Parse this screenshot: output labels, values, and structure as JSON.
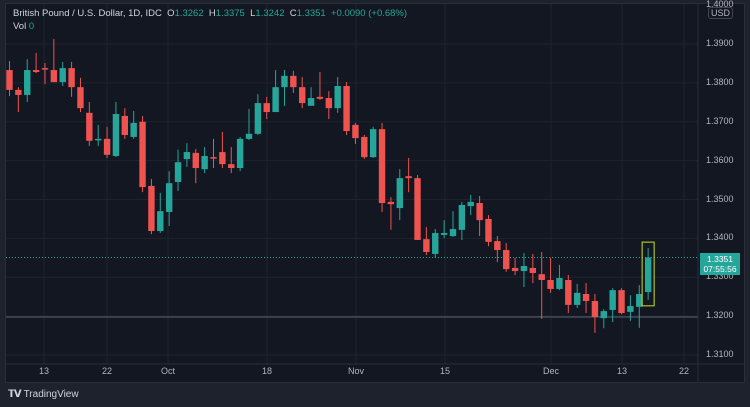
{
  "header": {
    "symbol": "British Pound / U.S. Dollar, 1D, IDC",
    "o_label": "O",
    "o": "1.3262",
    "h_label": "H",
    "h": "1.3375",
    "l_label": "L",
    "l": "1.3242",
    "c_label": "C",
    "c": "1.3351",
    "change": "+0.0090 (+0.68%)",
    "vol_label": "Vol",
    "vol": "0"
  },
  "price_axis": {
    "currency": "USD",
    "last_price": "1.3351",
    "countdown": "07:55:56"
  },
  "footer": {
    "brand": "TradingView",
    "logo": "TV"
  },
  "colors": {
    "up": "#26a69a",
    "down": "#ef5350",
    "background": "#131722",
    "highlight": "#c6e027"
  },
  "chart_data": {
    "type": "candlestick",
    "title": "British Pound / U.S. Dollar, 1D, IDC",
    "ylim": [
      1.31,
      1.4
    ],
    "yticks": [
      "1.4000",
      "1.3900",
      "1.3800",
      "1.3700",
      "1.3600",
      "1.3500",
      "1.3400",
      "1.3300",
      "1.3200",
      "1.3100"
    ],
    "xticks": [
      "13",
      "22",
      "Oct",
      "18",
      "Nov",
      "15",
      "Dec",
      "13",
      "22"
    ],
    "grid": true,
    "horizontal_lines": [
      1.3351,
      1.3198
    ],
    "highlighted_candle": "last",
    "ohlc": [
      [
        1.3833,
        1.3856,
        1.3766,
        1.3782
      ],
      [
        1.3782,
        1.3789,
        1.3725,
        1.3769
      ],
      [
        1.3769,
        1.3861,
        1.3751,
        1.3833
      ],
      [
        1.3833,
        1.3877,
        1.3825,
        1.3828
      ],
      [
        1.3838,
        1.3851,
        1.3797,
        1.3836
      ],
      [
        1.3833,
        1.3913,
        1.3802,
        1.3802
      ],
      [
        1.3802,
        1.3854,
        1.3792,
        1.3838
      ],
      [
        1.3838,
        1.3854,
        1.3764,
        1.3789
      ],
      [
        1.3789,
        1.3813,
        1.3725,
        1.3735
      ],
      [
        1.3723,
        1.3751,
        1.3638,
        1.3651
      ],
      [
        1.3654,
        1.3692,
        1.3638,
        1.3656
      ],
      [
        1.3656,
        1.3687,
        1.3607,
        1.3615
      ],
      [
        1.3612,
        1.3751,
        1.3609,
        1.372
      ],
      [
        1.3715,
        1.3735,
        1.3656,
        1.3666
      ],
      [
        1.3661,
        1.3728,
        1.3656,
        1.3697
      ],
      [
        1.37,
        1.3715,
        1.3519,
        1.3532
      ],
      [
        1.3535,
        1.3553,
        1.3411,
        1.3419
      ],
      [
        1.3419,
        1.3517,
        1.3414,
        1.347
      ],
      [
        1.3468,
        1.3573,
        1.3432,
        1.3542
      ],
      [
        1.3545,
        1.3628,
        1.3522,
        1.3596
      ],
      [
        1.3604,
        1.3645,
        1.3584,
        1.3622
      ],
      [
        1.362,
        1.363,
        1.3542,
        1.3581
      ],
      [
        1.3578,
        1.3635,
        1.3568,
        1.3612
      ],
      [
        1.3609,
        1.3656,
        1.3581,
        1.3607
      ],
      [
        1.3622,
        1.3674,
        1.3581,
        1.3591
      ],
      [
        1.3591,
        1.3635,
        1.3568,
        1.3581
      ],
      [
        1.3581,
        1.3661,
        1.3573,
        1.3656
      ],
      [
        1.3656,
        1.3733,
        1.3653,
        1.3669
      ],
      [
        1.3669,
        1.3771,
        1.3666,
        1.3748
      ],
      [
        1.3748,
        1.3764,
        1.3707,
        1.3725
      ],
      [
        1.3725,
        1.3833,
        1.3725,
        1.3789
      ],
      [
        1.3789,
        1.3833,
        1.3741,
        1.3818
      ],
      [
        1.3818,
        1.3831,
        1.3774,
        1.3789
      ],
      [
        1.3789,
        1.3815,
        1.3735,
        1.3748
      ],
      [
        1.3741,
        1.3789,
        1.3741,
        1.3761
      ],
      [
        1.3764,
        1.3828,
        1.3756,
        1.3759
      ],
      [
        1.3761,
        1.3779,
        1.3707,
        1.3735
      ],
      [
        1.3735,
        1.3815,
        1.3723,
        1.3792
      ],
      [
        1.3792,
        1.3802,
        1.3666,
        1.3676
      ],
      [
        1.3692,
        1.3697,
        1.3643,
        1.3658
      ],
      [
        1.3661,
        1.3666,
        1.3604,
        1.3609
      ],
      [
        1.3609,
        1.3687,
        1.3607,
        1.3681
      ],
      [
        1.3681,
        1.3697,
        1.3468,
        1.3491
      ],
      [
        1.3494,
        1.3506,
        1.3422,
        1.3488
      ],
      [
        1.3478,
        1.3578,
        1.3447,
        1.3555
      ],
      [
        1.356,
        1.3607,
        1.3519,
        1.3555
      ],
      [
        1.3555,
        1.3563,
        1.3396,
        1.3396
      ],
      [
        1.3398,
        1.3429,
        1.3357,
        1.3365
      ],
      [
        1.336,
        1.3424,
        1.335,
        1.3414
      ],
      [
        1.3409,
        1.3447,
        1.3401,
        1.3414
      ],
      [
        1.3406,
        1.347,
        1.3404,
        1.3424
      ],
      [
        1.3422,
        1.3494,
        1.3396,
        1.3486
      ],
      [
        1.3483,
        1.3512,
        1.346,
        1.3494
      ],
      [
        1.3491,
        1.3509,
        1.3406,
        1.3447
      ],
      [
        1.345,
        1.346,
        1.338,
        1.3391
      ],
      [
        1.3393,
        1.3406,
        1.3339,
        1.337
      ],
      [
        1.337,
        1.3388,
        1.3314,
        1.3321
      ],
      [
        1.3324,
        1.335,
        1.3306,
        1.3316
      ],
      [
        1.3316,
        1.3362,
        1.3275,
        1.3329
      ],
      [
        1.3324,
        1.336,
        1.3285,
        1.3311
      ],
      [
        1.3308,
        1.3365,
        1.3193,
        1.3293
      ],
      [
        1.3293,
        1.335,
        1.326,
        1.327
      ],
      [
        1.327,
        1.3332,
        1.3267,
        1.3298
      ],
      [
        1.3293,
        1.3306,
        1.3208,
        1.3229
      ],
      [
        1.3229,
        1.3283,
        1.3221,
        1.326
      ],
      [
        1.3257,
        1.3285,
        1.3208,
        1.3239
      ],
      [
        1.3239,
        1.3257,
        1.3157,
        1.3198
      ],
      [
        1.3195,
        1.3218,
        1.3169,
        1.3213
      ],
      [
        1.3216,
        1.3272,
        1.3185,
        1.3267
      ],
      [
        1.3267,
        1.3272,
        1.3205,
        1.3208
      ],
      [
        1.3211,
        1.3254,
        1.3188,
        1.3226
      ],
      [
        1.3224,
        1.328,
        1.317,
        1.3257
      ],
      [
        1.3262,
        1.3375,
        1.3242,
        1.3351
      ]
    ]
  }
}
